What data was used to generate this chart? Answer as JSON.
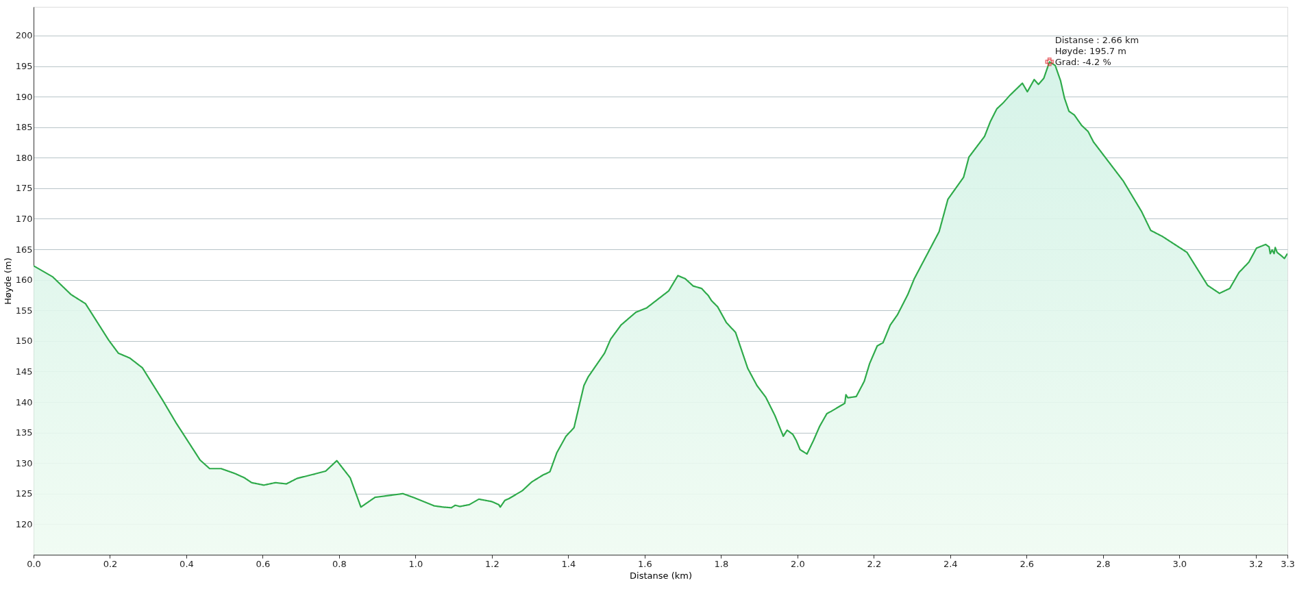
{
  "chart_data": {
    "type": "area",
    "xlabel": "Distanse (km)",
    "ylabel": "Høyde (m)",
    "xlim": [
      0,
      3.283
    ],
    "xticks": [
      {
        "value": 0,
        "label": "0.0"
      },
      0.2,
      0.4,
      0.6,
      0.8,
      {
        "value": 1,
        "label": "1.0"
      },
      1.2,
      1.4,
      1.6,
      1.8,
      {
        "value": 2,
        "label": "2.0"
      },
      2.2,
      2.4,
      2.6,
      2.8,
      {
        "value": 3,
        "label": "3.0"
      },
      3.2,
      {
        "value": 3.283,
        "label": "3.3"
      }
    ],
    "ylim": [
      115,
      204.7
    ],
    "yticks": [
      120,
      125,
      130,
      135,
      140,
      145,
      150,
      155,
      160,
      165,
      170,
      175,
      180,
      185,
      190,
      195,
      200
    ],
    "grid": "y",
    "marker": "none",
    "line_style": "solid",
    "series": [
      {
        "color": "#2eaa4a",
        "x": [
          0,
          0.05,
          0.098,
          0.136,
          0.197,
          0.222,
          0.252,
          0.285,
          0.338,
          0.373,
          0.436,
          0.461,
          0.491,
          0.527,
          0.552,
          0.571,
          0.603,
          0.633,
          0.662,
          0.69,
          0.735,
          0.765,
          0.794,
          0.829,
          0.857,
          0.894,
          0.967,
          0.998,
          1.049,
          1.073,
          1.094,
          1.104,
          1.116,
          1.141,
          1.166,
          1.2,
          1.218,
          1.222,
          1.234,
          1.245,
          1.28,
          1.304,
          1.335,
          1.343,
          1.352,
          1.37,
          1.394,
          1.415,
          1.441,
          1.452,
          1.495,
          1.511,
          1.538,
          1.577,
          1.605,
          1.663,
          1.687,
          1.706,
          1.727,
          1.749,
          1.767,
          1.775,
          1.791,
          1.814,
          1.838,
          1.87,
          1.894,
          1.917,
          1.941,
          1.963,
          1.973,
          1.988,
          1.997,
          2.007,
          2.025,
          2.042,
          2.058,
          2.077,
          2.089,
          2.124,
          2.127,
          2.132,
          2.154,
          2.175,
          2.189,
          2.209,
          2.224,
          2.243,
          2.262,
          2.289,
          2.306,
          2.371,
          2.394,
          2.435,
          2.449,
          2.49,
          2.505,
          2.522,
          2.539,
          2.556,
          2.589,
          2.602,
          2.62,
          2.631,
          2.645,
          2.66,
          2.675,
          2.689,
          2.699,
          2.711,
          2.725,
          2.744,
          2.761,
          2.775,
          2.853,
          2.901,
          2.925,
          2.956,
          3.02,
          3.074,
          3.105,
          3.132,
          3.156,
          3.182,
          3.202,
          3.226,
          3.235,
          3.238,
          3.243,
          3.248,
          3.251,
          3.256,
          3.268,
          3.275,
          3.283
        ],
        "values": [
          162.3,
          160.5,
          157.6,
          156.1,
          150.1,
          148,
          147.2,
          145.6,
          140.3,
          136.6,
          130.5,
          129.1,
          129.1,
          128.3,
          127.6,
          126.8,
          126.4,
          126.8,
          126.6,
          127.5,
          128.2,
          128.7,
          130.4,
          127.6,
          122.8,
          124.4,
          125,
          124.3,
          123,
          122.8,
          122.7,
          123.1,
          122.9,
          123.2,
          124.1,
          123.7,
          123.2,
          122.8,
          123.9,
          124.2,
          125.5,
          126.9,
          128.1,
          128.3,
          128.6,
          131.7,
          134.4,
          135.8,
          142.7,
          144.1,
          148,
          150.3,
          152.6,
          154.7,
          155.4,
          158.2,
          160.7,
          160.2,
          159,
          158.6,
          157.4,
          156.6,
          155.6,
          153,
          151.4,
          145.5,
          142.7,
          140.8,
          137.8,
          134.4,
          135.4,
          134.7,
          133.7,
          132.2,
          131.5,
          133.7,
          136,
          138.1,
          138.5,
          139.8,
          141.2,
          140.7,
          140.9,
          143.4,
          146.3,
          149.2,
          149.7,
          152.6,
          154.3,
          157.6,
          160.2,
          167.9,
          173.2,
          176.8,
          180.1,
          183.5,
          185.9,
          188,
          189,
          190.2,
          192.2,
          190.8,
          192.8,
          192,
          193,
          195.7,
          195.1,
          192.6,
          189.8,
          187.6,
          187,
          185.3,
          184.3,
          182.6,
          176.2,
          171.2,
          168.1,
          167.1,
          164.5,
          159.1,
          157.8,
          158.6,
          161.2,
          162.9,
          165.2,
          165.8,
          165.4,
          164.3,
          164.9,
          164.3,
          165.3,
          164.5,
          163.9,
          163.5,
          164.3
        ]
      }
    ],
    "annotations": [
      {
        "text": "Distanse : 2.66 km\nHøyde: 195.7 m\nGrad: -4.2 %",
        "x": 2.66,
        "y": 195.7
      }
    ]
  }
}
